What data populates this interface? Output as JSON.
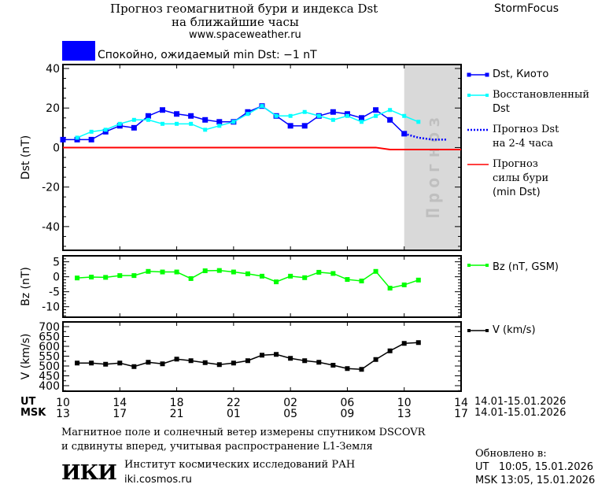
{
  "header": {
    "title_line1": "Прогноз геомагнитной бури и индекса Dst",
    "title_line2": "на ближайшие часы",
    "url": "www.spaceweather.ru",
    "brand": "StormFocus",
    "status_text": "Спокойно, ожидаемый min Dst: −1 nT",
    "status_color": "#0000ff"
  },
  "legend": {
    "dst_kyoto": "Dst, Киото",
    "dst_restored_1": "Восстановленный",
    "dst_restored_2": "Dst",
    "dst_forecast_1": "Прогноз Dst",
    "dst_forecast_2": "на 2-4 часа",
    "storm_1": "Прогноз",
    "storm_2": "силы бури",
    "storm_3": "(min Dst)",
    "bz": "Bz (nT, GSM)",
    "v": "V (km/s)"
  },
  "forecast_band_label": "Прогноз",
  "time_axis": {
    "ut_label": "UT",
    "msk_label": "MSK",
    "ut_ticks": [
      "10",
      "14",
      "18",
      "22",
      "02",
      "06",
      "10",
      "14"
    ],
    "msk_ticks": [
      "13",
      "17",
      "21",
      "01",
      "05",
      "09",
      "13",
      "17"
    ],
    "date_range_ut": "14.01-15.01.2026",
    "date_range_msk": "14.01-15.01.2026"
  },
  "footer": {
    "note_line1": "Магнитное поле и солнечный ветер измерены спутником DSCOVR",
    "note_line2": "и сдвинуты вперед, учитывая распространение L1-Земля",
    "institute": "Институт космических исследований РАН",
    "institute_url": "iki.cosmos.ru",
    "logo_text": "ИКИ",
    "updated_label": "Обновлено в:",
    "updated_ut": "UT   10:05, 15.01.2026",
    "updated_msk": "MSK 13:05, 15.01.2026"
  },
  "chart_data": [
    {
      "type": "line",
      "ylabel": "Dst (nT)",
      "ylim": [
        -52,
        42
      ],
      "yticks": [
        40,
        20,
        0,
        -20,
        -40
      ],
      "x_unit": "hours UT since 14.01 00:00",
      "xlim": [
        10,
        38
      ],
      "forecast_region": [
        34,
        38
      ],
      "series": [
        {
          "name": "Dst, Киото",
          "color": "#0000ff",
          "style": "line-square",
          "x": [
            10,
            11,
            12,
            13,
            14,
            15,
            16,
            17,
            18,
            19,
            20,
            21,
            22,
            23,
            24,
            25,
            26,
            27,
            28,
            29,
            30,
            31,
            32,
            33,
            34
          ],
          "y": [
            4,
            4,
            4,
            8,
            11,
            10,
            16,
            19,
            17,
            16,
            14,
            13,
            13,
            18,
            21,
            16,
            11,
            11,
            16,
            18,
            17,
            15,
            19,
            14,
            7
          ]
        },
        {
          "name": "Восстановленный Dst",
          "color": "#00ffff",
          "style": "line-square-small",
          "x": [
            11,
            12,
            13,
            14,
            15,
            16,
            17,
            18,
            19,
            20,
            21,
            22,
            23,
            24,
            25,
            26,
            27,
            28,
            29,
            30,
            31,
            32,
            33,
            34,
            35
          ],
          "y": [
            5,
            8,
            9,
            12,
            14,
            14,
            12,
            12,
            12,
            9,
            11,
            13,
            17,
            21,
            16,
            16,
            18,
            16,
            14,
            16,
            13,
            16,
            19,
            16,
            13
          ]
        },
        {
          "name": "Прогноз Dst на 2-4 часа",
          "color": "#0000ff",
          "style": "dotted",
          "x": [
            34,
            35,
            36,
            37
          ],
          "y": [
            7,
            5,
            4,
            4
          ]
        },
        {
          "name": "Прогноз силы бури (min Dst)",
          "color": "#ff0000",
          "style": "line",
          "x": [
            10,
            32,
            33,
            38
          ],
          "y": [
            0,
            0,
            -1,
            -1
          ]
        }
      ]
    },
    {
      "type": "line",
      "ylabel": "Bz (nT)",
      "ylim": [
        -13.5,
        7
      ],
      "yticks": [
        5,
        0,
        -5,
        -10
      ],
      "xlim": [
        10,
        38
      ],
      "series": [
        {
          "name": "Bz (nT, GSM)",
          "color": "#00ff00",
          "x": [
            11,
            12,
            13,
            14,
            15,
            16,
            17,
            18,
            19,
            20,
            21,
            22,
            23,
            24,
            25,
            26,
            27,
            28,
            29,
            30,
            31,
            32,
            33,
            34,
            35
          ],
          "y": [
            -0.4,
            -0.1,
            -0.2,
            0.4,
            0.4,
            1.8,
            1.6,
            1.6,
            -0.6,
            2.0,
            2.1,
            1.6,
            1.0,
            0.2,
            -1.7,
            0.2,
            -0.3,
            1.5,
            1.1,
            -0.9,
            -1.4,
            1.8,
            -3.8,
            -2.7,
            -1.1
          ]
        }
      ]
    },
    {
      "type": "line",
      "ylabel": "V (km/s)",
      "ylim": [
        372,
        724
      ],
      "yticks": [
        700,
        650,
        600,
        550,
        500,
        450,
        400
      ],
      "xlim": [
        10,
        38
      ],
      "series": [
        {
          "name": "V (km/s)",
          "color": "#000000",
          "x": [
            11,
            12,
            13,
            14,
            15,
            16,
            17,
            18,
            19,
            20,
            21,
            22,
            23,
            24,
            25,
            26,
            27,
            28,
            29,
            30,
            31,
            32,
            33,
            34,
            35
          ],
          "y": [
            515,
            515,
            509,
            515,
            497,
            519,
            511,
            535,
            527,
            517,
            507,
            515,
            527,
            555,
            559,
            539,
            527,
            519,
            504,
            487,
            483,
            533,
            577,
            615,
            619
          ]
        }
      ]
    }
  ]
}
